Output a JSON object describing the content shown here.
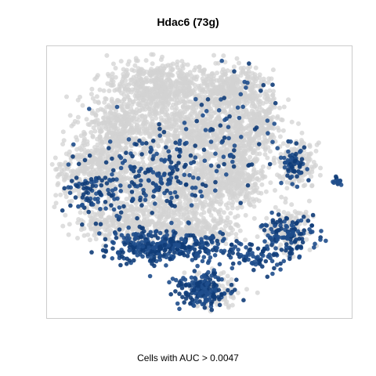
{
  "chart_data": {
    "type": "scatter",
    "title": "Hdac6 (73g)",
    "xlabel": "Cells with AUC > 0.0047",
    "ylabel": "",
    "grid": false,
    "legend": "none",
    "colors": {
      "background_cells": "#d3d3d3",
      "high_auc_cells": "#1f4e8c",
      "high_auc_cells_dark": "#0f3c78",
      "panel_border": "#cccccc"
    },
    "series": [
      {
        "values": "cells below AUC threshold (grey)"
      },
      {
        "values": "cells above AUC threshold (blue)"
      }
    ]
  }
}
